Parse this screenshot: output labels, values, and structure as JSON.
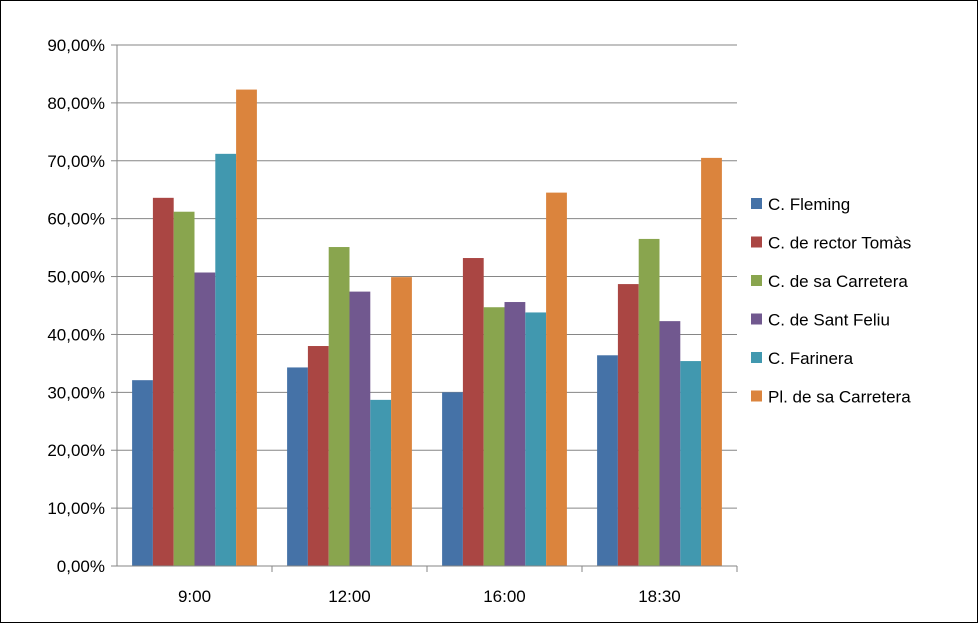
{
  "chart_data": {
    "type": "bar",
    "categories": [
      "9:00",
      "12:00",
      "16:00",
      "18:30"
    ],
    "series": [
      {
        "name": "C. Fleming",
        "color": "#4572A7",
        "values": [
          0.321,
          0.343,
          0.3,
          0.364
        ]
      },
      {
        "name": "C. de rector Tomàs",
        "color": "#AA4643",
        "values": [
          0.636,
          0.38,
          0.532,
          0.487
        ]
      },
      {
        "name": "C. de sa Carretera",
        "color": "#89A54E",
        "values": [
          0.612,
          0.551,
          0.447,
          0.565
        ]
      },
      {
        "name": "C. de Sant Feliu",
        "color": "#71588F",
        "values": [
          0.507,
          0.474,
          0.456,
          0.423
        ]
      },
      {
        "name": "C. Farinera",
        "color": "#4198AF",
        "values": [
          0.712,
          0.287,
          0.438,
          0.354
        ]
      },
      {
        "name": "Pl. de sa Carretera",
        "color": "#DB843D",
        "values": [
          0.823,
          0.499,
          0.645,
          0.705
        ]
      }
    ],
    "ylim": [
      0,
      0.9
    ],
    "ytick_values": [
      0,
      0.1,
      0.2,
      0.3,
      0.4,
      0.5,
      0.6,
      0.7,
      0.8,
      0.9
    ],
    "ytick_labels": [
      "0,00%",
      "10,00%",
      "20,00%",
      "30,00%",
      "40,00%",
      "50,00%",
      "60,00%",
      "70,00%",
      "80,00%",
      "90,00%"
    ],
    "grid": true,
    "legend": "right"
  }
}
